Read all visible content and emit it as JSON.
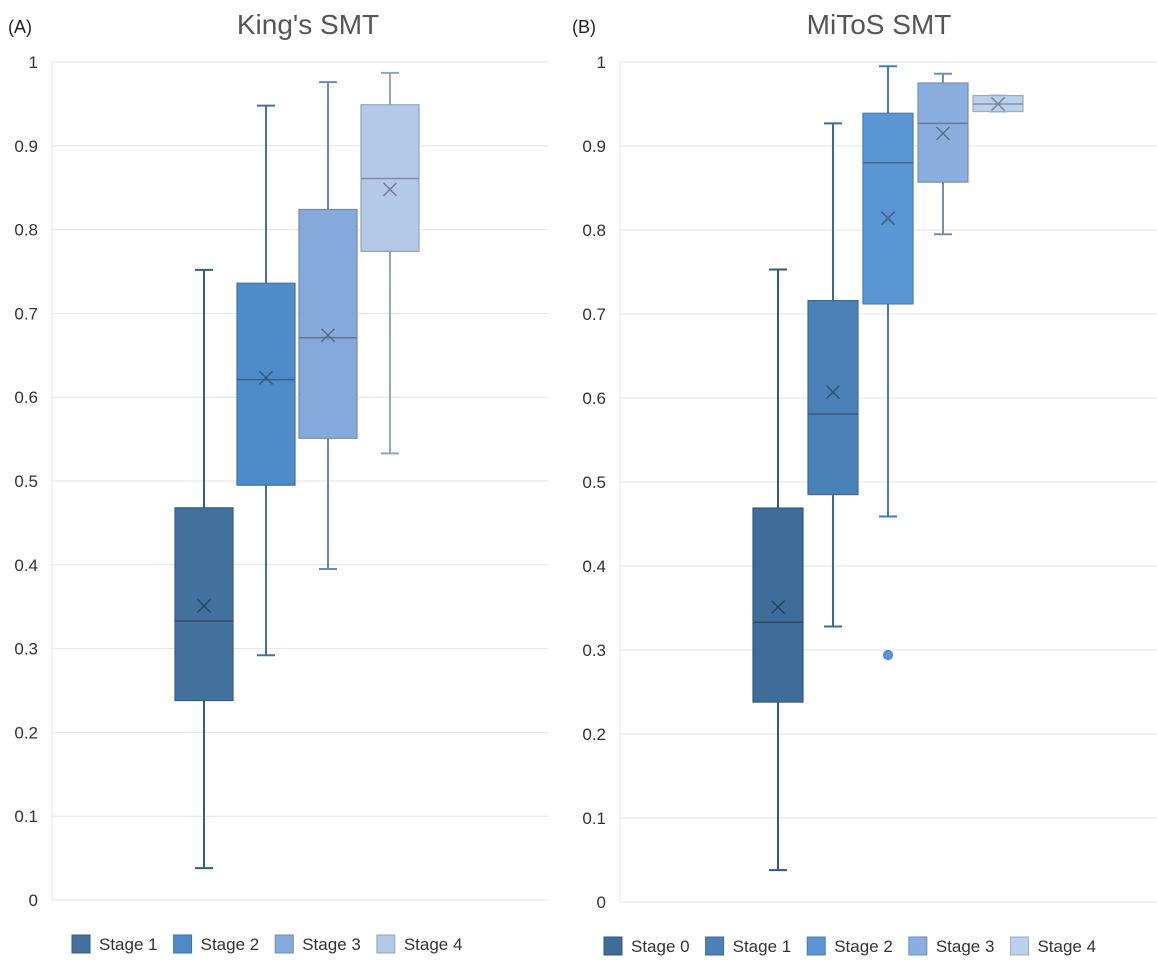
{
  "chart_data": [
    {
      "type": "box",
      "panel_label": "(A)",
      "title": "King's SMT",
      "ylim": [
        0,
        1
      ],
      "yticks": [
        "0",
        "0.1",
        "0.2",
        "0.3",
        "0.4",
        "0.5",
        "0.6",
        "0.7",
        "0.8",
        "0.9",
        "1"
      ],
      "grid": true,
      "legend_position": "bottom",
      "series": [
        {
          "name": "Stage 1",
          "color": "#41719c",
          "min": 0.038,
          "q1": 0.238,
          "median": 0.333,
          "q3": 0.468,
          "max": 0.752,
          "mean": 0.351,
          "outliers": []
        },
        {
          "name": "Stage 2",
          "color": "#4f8bc9",
          "min": 0.292,
          "q1": 0.495,
          "median": 0.621,
          "q3": 0.736,
          "max": 0.948,
          "mean": 0.623,
          "outliers": []
        },
        {
          "name": "Stage 3",
          "color": "#86a9dc",
          "min": 0.395,
          "q1": 0.551,
          "median": 0.671,
          "q3": 0.824,
          "max": 0.976,
          "mean": 0.674,
          "outliers": []
        },
        {
          "name": "Stage 4",
          "color": "#b4c8e8",
          "min": 0.533,
          "q1": 0.774,
          "median": 0.861,
          "q3": 0.949,
          "max": 0.987,
          "mean": 0.848,
          "outliers": []
        }
      ]
    },
    {
      "type": "box",
      "panel_label": "(B)",
      "title": "MiToS SMT",
      "ylim": [
        0,
        1
      ],
      "yticks": [
        "0",
        "0.1",
        "0.2",
        "0.3",
        "0.4",
        "0.5",
        "0.6",
        "0.7",
        "0.8",
        "0.9",
        "1"
      ],
      "grid": true,
      "legend_position": "bottom",
      "series": [
        {
          "name": "Stage 0",
          "color": "#3e6d9a",
          "min": 0.038,
          "q1": 0.238,
          "median": 0.333,
          "q3": 0.469,
          "max": 0.753,
          "mean": 0.351,
          "outliers": []
        },
        {
          "name": "Stage 1",
          "color": "#4a82b8",
          "min": 0.328,
          "q1": 0.485,
          "median": 0.581,
          "q3": 0.716,
          "max": 0.927,
          "mean": 0.607,
          "outliers": []
        },
        {
          "name": "Stage 2",
          "color": "#5a96d4",
          "min": 0.459,
          "q1": 0.712,
          "median": 0.88,
          "q3": 0.939,
          "max": 0.995,
          "mean": 0.814,
          "outliers": [
            0.294
          ]
        },
        {
          "name": "Stage 3",
          "color": "#8caede",
          "min": 0.795,
          "q1": 0.857,
          "median": 0.927,
          "q3": 0.975,
          "max": 0.986,
          "mean": 0.915,
          "outliers": []
        },
        {
          "name": "Stage 4",
          "color": "#bcd0ec",
          "min": 0.941,
          "q1": 0.941,
          "median": 0.95,
          "q3": 0.96,
          "max": 0.96,
          "mean": 0.95,
          "outliers": []
        }
      ]
    }
  ]
}
